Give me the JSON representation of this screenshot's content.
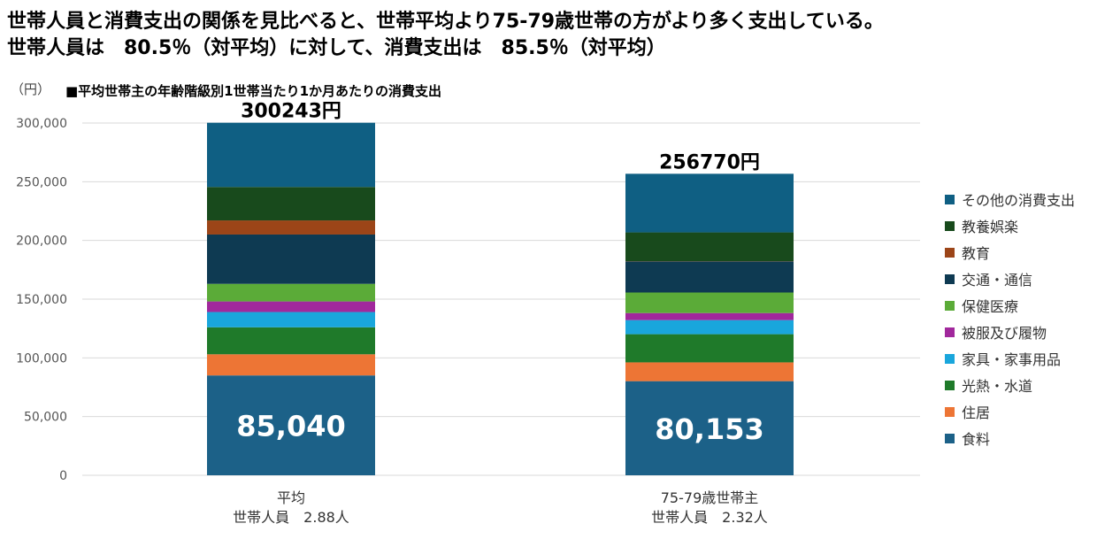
{
  "header": {
    "line1": "世帯人員と消費支出の関係を見比べると、世帯平均より75-79歳世帯の方がより多く支出している。",
    "line2": "世帯人員は　80.5％（対平均）に対して、消費支出は　85.5％（対平均）"
  },
  "chart_data": {
    "type": "bar",
    "stacked": true,
    "subtitle": "■平均世帯主の年齢階級別1世帯当たり1か月あたりの消費支出",
    "unit_label": "（円）",
    "ylim": [
      0,
      300000
    ],
    "yticks": [
      0,
      50000,
      100000,
      150000,
      200000,
      250000,
      300000
    ],
    "ytick_labels": [
      "0",
      "50,000",
      "100,000",
      "150,000",
      "200,000",
      "250,000",
      "300,000"
    ],
    "grid": true,
    "legend_position": "right",
    "categories": [
      {
        "line1": "平均",
        "line2": "世帯人員　2.88人"
      },
      {
        "line1": "75-79歳世帯主",
        "line2": "世帯人員　2.32人"
      }
    ],
    "totals": [
      300243,
      256770
    ],
    "total_labels": [
      "300243円",
      "256770円"
    ],
    "food_labels": [
      "85,040",
      "80,153"
    ],
    "series": [
      {
        "name": "食料",
        "color": "#1c6188",
        "values": [
          85040,
          80153
        ]
      },
      {
        "name": "住居",
        "color": "#ed7535",
        "values": [
          18000,
          16000
        ]
      },
      {
        "name": "光熱・水道",
        "color": "#1f7a2a",
        "values": [
          23000,
          24000
        ]
      },
      {
        "name": "家具・家事用品",
        "color": "#19a6dc",
        "values": [
          13000,
          12000
        ]
      },
      {
        "name": "被服及び履物",
        "color": "#a1289c",
        "values": [
          9000,
          6000
        ]
      },
      {
        "name": "保健医療",
        "color": "#5bab38",
        "values": [
          15000,
          17500
        ]
      },
      {
        "name": "交通・通信",
        "color": "#0e3a52",
        "values": [
          42000,
          26500
        ]
      },
      {
        "name": "教育",
        "color": "#9c4518",
        "values": [
          12000,
          200
        ]
      },
      {
        "name": "教養娯楽",
        "color": "#184a1c",
        "values": [
          28500,
          24500
        ]
      },
      {
        "name": "その他の消費支出",
        "color": "#0f5f83",
        "values": [
          54703,
          49917
        ]
      }
    ]
  }
}
